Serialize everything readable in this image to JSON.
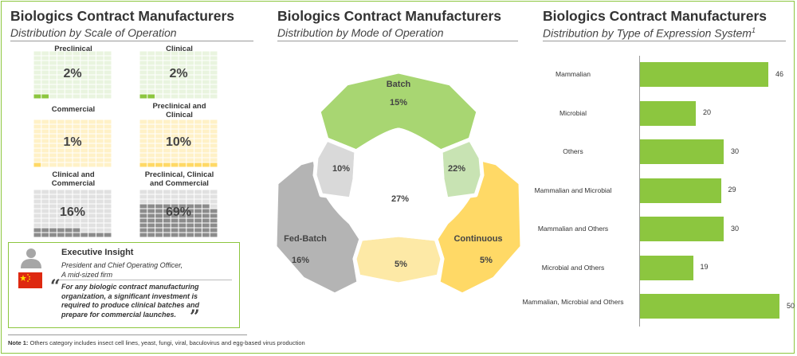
{
  "colors": {
    "green": "#8cc63f",
    "green_light": "#a8d672",
    "green_pale": "#c8e3b3",
    "yellow": "#ffd966",
    "yellow_pale": "#fde9a6",
    "gray": "#b4b4b4",
    "gray_light": "#d9d9d9",
    "waffle_green_empty": "#e9f4df",
    "waffle_yellow_empty": "#fff1c7",
    "waffle_gray_empty": "#e1e1e1",
    "waffle_gray_fill": "#8c8c8c"
  },
  "panels": {
    "left": {
      "title": "Biologics Contract Manufacturers",
      "subtitle": "Distribution by Scale of Operation"
    },
    "middle": {
      "title": "Biologics Contract Manufacturers",
      "subtitle": "Distribution by Mode of Operation"
    },
    "right": {
      "title": "Biologics Contract Manufacturers",
      "subtitle": "Distribution by Type of Expression System",
      "subtitle_sup": "1"
    }
  },
  "chart_data": [
    {
      "type": "waffle",
      "title": "Distribution by Scale of Operation",
      "categories": [
        "Preclinical",
        "Clinical",
        "Commercial",
        "Preclinical and Clinical",
        "Clinical and Commercial",
        "Preclinical, Clinical and Commercial"
      ],
      "values": [
        2,
        2,
        1,
        10,
        16,
        69
      ],
      "labels": [
        "2%",
        "2%",
        "1%",
        "10%",
        "16%",
        "69%"
      ]
    },
    {
      "type": "venn",
      "title": "Distribution by Mode of Operation",
      "categories": [
        "Batch",
        "Continuous",
        "Fed-Batch",
        "Batch and Continuous",
        "Continuous and Fed-Batch",
        "Batch and Fed-Batch",
        "Batch, Continuous and Fed-Batch"
      ],
      "values": [
        15,
        5,
        16,
        22,
        5,
        10,
        27
      ],
      "labels": [
        "15%",
        "5%",
        "16%",
        "22%",
        "5%",
        "10%",
        "27%"
      ]
    },
    {
      "type": "bar",
      "orientation": "horizontal",
      "title": "Distribution by Type of Expression System",
      "categories": [
        "Mammalian",
        "Microbial",
        "Others",
        "Mammalian and Microbial",
        "Mammalian and Others",
        "Microbial and Others",
        "Mammalian, Microbial and Others"
      ],
      "values": [
        46,
        20,
        30,
        29,
        30,
        19,
        50
      ],
      "xlim": [
        0,
        50
      ]
    }
  ],
  "insight": {
    "title": "Executive Insight",
    "role": "President and Chief Operating Officer,",
    "firm": "A mid-sized firm",
    "quote": "For any biologic contract manufacturing organization, a significant investment is required to produce clinical batches and prepare for commercial launches.",
    "avatar_icon": "person-silhouette-icon",
    "flag_icon": "china-flag-icon"
  },
  "note": {
    "label": "Note 1:",
    "text": "Others category includes insect cell lines, yeast, fungi, viral, baculovirus and egg-based virus production"
  }
}
